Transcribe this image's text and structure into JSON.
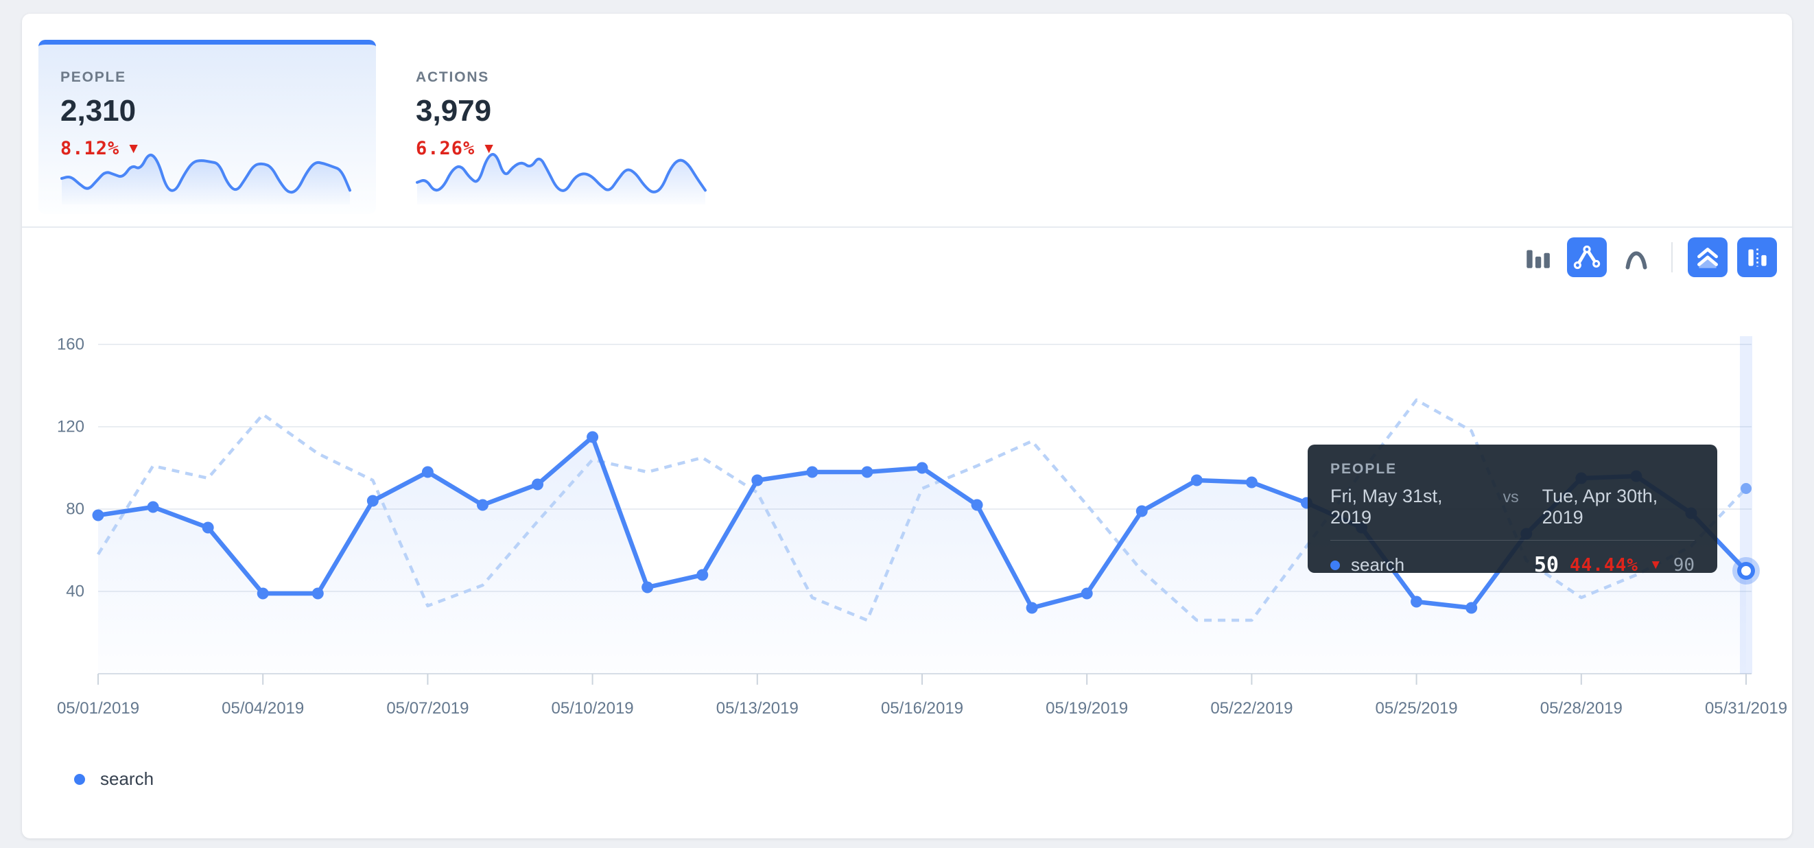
{
  "colors": {
    "accent": "#3d7ef7",
    "line": "#4a86f7",
    "dashed_line": "#b9d2f8",
    "dashed_dot": "#7aa7f8",
    "red": "#df241c",
    "page_bg": "#eef0f4",
    "panel_bg": "#ffffff",
    "axis_text": "#64788e",
    "grid": "#e9edf2",
    "axis_line": "#d8dee6",
    "tooltip_bg": "rgba(27,38,50,0.93)"
  },
  "icons": {
    "down_arrow": "▼"
  },
  "cards": [
    {
      "label": "PEOPLE",
      "value": "2,310",
      "change": "8.12%",
      "direction": "down",
      "active": true,
      "sparkline": [
        55,
        58,
        48,
        40,
        52,
        64,
        60,
        56,
        72,
        66,
        88,
        78,
        42,
        38,
        60,
        76,
        78,
        76,
        74,
        48,
        38,
        54,
        72,
        74,
        70,
        50,
        36,
        40,
        62,
        76,
        74,
        70,
        66,
        40
      ]
    },
    {
      "label": "ACTIONS",
      "value": "3,979",
      "change": "6.26%",
      "direction": "down",
      "active": false,
      "sparkline": [
        52,
        56,
        40,
        46,
        68,
        74,
        58,
        50,
        84,
        90,
        58,
        72,
        78,
        70,
        86,
        66,
        44,
        40,
        58,
        64,
        60,
        48,
        40,
        56,
        70,
        64,
        48,
        38,
        44,
        70,
        82,
        76,
        58,
        42
      ]
    }
  ],
  "toolbar": {
    "buttons": [
      {
        "name": "bar-chart",
        "active": false
      },
      {
        "name": "line-chart",
        "active": true
      },
      {
        "name": "curve-chart",
        "active": false
      },
      {
        "name": "stacked-area",
        "active": true
      },
      {
        "name": "compare-columns",
        "active": true
      }
    ]
  },
  "chart_data": {
    "type": "line",
    "title": "",
    "xlabel": "",
    "ylabel": "",
    "x_tick_labels": [
      "05/01/2019",
      "05/04/2019",
      "05/07/2019",
      "05/10/2019",
      "05/13/2019",
      "05/16/2019",
      "05/19/2019",
      "05/22/2019",
      "05/25/2019",
      "05/28/2019",
      "05/31/2019"
    ],
    "y_ticks": [
      40,
      80,
      120,
      160
    ],
    "ylim": [
      0,
      164
    ],
    "grid": true,
    "legend_position": "bottom-left",
    "highlighted_index": 30,
    "series": [
      {
        "name": "search",
        "period": "current",
        "style": "solid",
        "values": [
          77,
          81,
          71,
          39,
          39,
          84,
          98,
          82,
          92,
          115,
          42,
          48,
          94,
          98,
          98,
          100,
          82,
          32,
          39,
          79,
          94,
          93,
          83,
          71,
          35,
          32,
          68,
          95,
          96,
          78,
          50
        ]
      },
      {
        "name": "search (previous period)",
        "period": "previous",
        "style": "dashed",
        "values": [
          58,
          101,
          95,
          126,
          107,
          94,
          33,
          43,
          74,
          104,
          98,
          105,
          88,
          37,
          26,
          90,
          101,
          113,
          82,
          50,
          26,
          26,
          62,
          98,
          133,
          118,
          55,
          37,
          48,
          62,
          90
        ]
      }
    ]
  },
  "tooltip": {
    "title": "PEOPLE",
    "date_current": "Fri, May 31st, 2019",
    "vs_label": "vs",
    "date_previous": "Tue, Apr 30th, 2019",
    "series_label": "search",
    "value": "50",
    "change": "44.44%",
    "direction": "down",
    "previous_value": "90"
  },
  "legend": {
    "items": [
      {
        "label": "search"
      }
    ]
  }
}
